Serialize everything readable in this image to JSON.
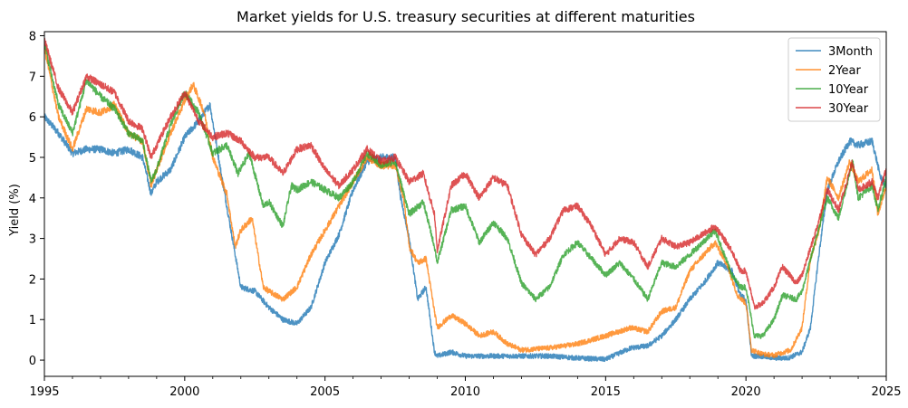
{
  "chart_data": {
    "type": "line",
    "title": "Market yields for U.S. treasury securities at different maturities",
    "xlabel": "",
    "ylabel": "Yield (%)",
    "xlim": [
      1995,
      2025
    ],
    "ylim": [
      -0.4,
      8.1
    ],
    "x_ticks": [
      1995,
      2000,
      2005,
      2010,
      2015,
      2020,
      2025
    ],
    "x_tick_labels": [
      "1995",
      "2000",
      "2005",
      "2010",
      "2015",
      "2020",
      "2025"
    ],
    "y_ticks": [
      0,
      1,
      2,
      3,
      4,
      5,
      6,
      7,
      8
    ],
    "y_tick_labels": [
      "0",
      "1",
      "2",
      "3",
      "4",
      "5",
      "6",
      "7",
      "8"
    ],
    "grid": false,
    "legend": "top-right",
    "series": [
      {
        "name": "3Month",
        "color": "#1f77b4",
        "x": [
          1995.0,
          1995.5,
          1996.0,
          1996.5,
          1997.0,
          1997.5,
          1998.0,
          1998.5,
          1998.8,
          1999.0,
          1999.5,
          2000.0,
          2000.5,
          2000.9,
          2001.3,
          2001.7,
          2002.0,
          2002.5,
          2003.0,
          2003.5,
          2004.0,
          2004.5,
          2005.0,
          2005.5,
          2006.0,
          2006.5,
          2007.0,
          2007.5,
          2007.7,
          2008.0,
          2008.3,
          2008.6,
          2008.9,
          2009.0,
          2009.5,
          2010.0,
          2011.0,
          2012.0,
          2013.0,
          2014.0,
          2015.0,
          2015.9,
          2016.5,
          2017.0,
          2017.5,
          2018.0,
          2018.5,
          2019.0,
          2019.5,
          2019.8,
          2020.0,
          2020.2,
          2020.5,
          2021.0,
          2021.5,
          2022.0,
          2022.3,
          2022.6,
          2022.9,
          2023.3,
          2023.7,
          2024.0,
          2024.5,
          2024.8,
          2025.0
        ],
        "y": [
          6.0,
          5.6,
          5.1,
          5.2,
          5.2,
          5.1,
          5.2,
          5.0,
          4.1,
          4.4,
          4.7,
          5.5,
          5.9,
          6.3,
          4.6,
          3.0,
          1.8,
          1.7,
          1.3,
          1.0,
          0.9,
          1.3,
          2.4,
          3.1,
          4.2,
          4.9,
          5.0,
          5.0,
          4.0,
          3.0,
          1.5,
          1.8,
          0.2,
          0.1,
          0.2,
          0.1,
          0.1,
          0.1,
          0.1,
          0.05,
          0.02,
          0.3,
          0.35,
          0.6,
          1.0,
          1.5,
          1.9,
          2.4,
          2.2,
          1.6,
          1.5,
          0.1,
          0.1,
          0.05,
          0.05,
          0.2,
          0.8,
          2.6,
          4.2,
          4.9,
          5.4,
          5.3,
          5.4,
          4.5,
          4.3
        ]
      },
      {
        "name": "2Year",
        "color": "#ff7f0e",
        "x": [
          1995.0,
          1995.5,
          1996.0,
          1996.5,
          1997.0,
          1997.5,
          1998.0,
          1998.5,
          1998.8,
          1999.0,
          1999.5,
          2000.0,
          2000.3,
          2000.7,
          2001.0,
          2001.5,
          2001.8,
          2002.0,
          2002.4,
          2002.8,
          2003.0,
          2003.5,
          2004.0,
          2004.5,
          2005.0,
          2005.5,
          2006.0,
          2006.5,
          2007.0,
          2007.5,
          2007.8,
          2008.0,
          2008.3,
          2008.6,
          2008.9,
          2009.0,
          2009.5,
          2010.0,
          2010.5,
          2011.0,
          2011.5,
          2012.0,
          2013.0,
          2014.0,
          2015.0,
          2015.9,
          2016.5,
          2017.0,
          2017.5,
          2018.0,
          2018.5,
          2018.9,
          2019.3,
          2019.7,
          2020.0,
          2020.2,
          2020.6,
          2021.0,
          2021.6,
          2022.0,
          2022.3,
          2022.6,
          2022.9,
          2023.3,
          2023.7,
          2024.0,
          2024.5,
          2024.7,
          2025.0
        ],
        "y": [
          7.7,
          6.0,
          5.2,
          6.2,
          6.1,
          6.3,
          5.6,
          5.4,
          4.3,
          4.7,
          5.6,
          6.4,
          6.8,
          6.1,
          5.0,
          4.1,
          2.8,
          3.2,
          3.5,
          1.8,
          1.7,
          1.5,
          1.8,
          2.6,
          3.2,
          3.8,
          4.4,
          5.0,
          4.8,
          4.8,
          4.0,
          2.8,
          2.4,
          2.5,
          1.2,
          0.8,
          1.1,
          0.9,
          0.6,
          0.7,
          0.4,
          0.25,
          0.3,
          0.4,
          0.6,
          0.8,
          0.7,
          1.2,
          1.3,
          2.2,
          2.6,
          2.9,
          2.4,
          1.6,
          1.4,
          0.25,
          0.15,
          0.12,
          0.25,
          0.8,
          2.5,
          3.2,
          4.5,
          4.0,
          4.9,
          4.4,
          4.7,
          3.6,
          4.3
        ]
      },
      {
        "name": "10Year",
        "color": "#2ca02c",
        "x": [
          1995.0,
          1995.5,
          1996.0,
          1996.5,
          1997.0,
          1997.5,
          1998.0,
          1998.5,
          1998.8,
          1999.0,
          1999.5,
          2000.0,
          2000.5,
          2001.0,
          2001.5,
          2001.9,
          2002.3,
          2002.8,
          2003.0,
          2003.5,
          2003.8,
          2004.0,
          2004.5,
          2005.0,
          2005.5,
          2006.0,
          2006.5,
          2007.0,
          2007.5,
          2008.0,
          2008.5,
          2008.9,
          2009.0,
          2009.5,
          2010.0,
          2010.5,
          2011.0,
          2011.5,
          2012.0,
          2012.5,
          2013.0,
          2013.5,
          2014.0,
          2014.5,
          2015.0,
          2015.5,
          2016.0,
          2016.5,
          2017.0,
          2017.5,
          2018.0,
          2018.9,
          2019.5,
          2019.8,
          2020.0,
          2020.3,
          2020.6,
          2021.0,
          2021.3,
          2021.8,
          2022.0,
          2022.5,
          2022.9,
          2023.3,
          2023.8,
          2024.0,
          2024.5,
          2024.7,
          2025.0
        ],
        "y": [
          7.8,
          6.3,
          5.6,
          6.9,
          6.5,
          6.2,
          5.6,
          5.4,
          4.4,
          4.7,
          5.8,
          6.6,
          6.1,
          5.1,
          5.3,
          4.6,
          5.1,
          3.8,
          3.9,
          3.3,
          4.3,
          4.2,
          4.4,
          4.2,
          4.0,
          4.4,
          5.1,
          4.8,
          4.9,
          3.6,
          3.9,
          2.8,
          2.4,
          3.7,
          3.8,
          2.9,
          3.4,
          3.0,
          1.9,
          1.5,
          1.8,
          2.6,
          2.9,
          2.5,
          2.1,
          2.4,
          2.0,
          1.5,
          2.4,
          2.3,
          2.6,
          3.2,
          2.1,
          1.8,
          1.8,
          0.6,
          0.6,
          1.0,
          1.6,
          1.5,
          1.7,
          3.0,
          4.0,
          3.5,
          4.9,
          4.0,
          4.3,
          3.7,
          4.5
        ]
      },
      {
        "name": "30Year",
        "color": "#d62728",
        "x": [
          1995.0,
          1995.5,
          1996.0,
          1996.5,
          1997.0,
          1997.5,
          1998.0,
          1998.5,
          1998.8,
          1999.0,
          1999.5,
          2000.0,
          2000.5,
          2001.0,
          2001.5,
          2002.0,
          2002.5,
          2003.0,
          2003.5,
          2004.0,
          2004.5,
          2005.0,
          2005.5,
          2006.0,
          2006.5,
          2007.0,
          2007.5,
          2008.0,
          2008.5,
          2008.9,
          2009.0,
          2009.5,
          2010.0,
          2010.5,
          2011.0,
          2011.5,
          2012.0,
          2012.5,
          2013.0,
          2013.5,
          2014.0,
          2014.5,
          2015.0,
          2015.5,
          2016.0,
          2016.5,
          2017.0,
          2017.5,
          2018.0,
          2018.9,
          2019.5,
          2019.8,
          2020.0,
          2020.3,
          2020.6,
          2021.0,
          2021.3,
          2021.8,
          2022.0,
          2022.5,
          2022.9,
          2023.3,
          2023.8,
          2024.0,
          2024.5,
          2024.7,
          2025.0
        ],
        "y": [
          7.9,
          6.7,
          6.1,
          7.0,
          6.8,
          6.6,
          5.9,
          5.7,
          5.0,
          5.3,
          6.0,
          6.6,
          5.9,
          5.5,
          5.6,
          5.4,
          5.0,
          5.0,
          4.6,
          5.2,
          5.3,
          4.7,
          4.3,
          4.7,
          5.2,
          4.9,
          5.0,
          4.4,
          4.6,
          3.6,
          2.7,
          4.3,
          4.6,
          4.0,
          4.5,
          4.3,
          3.1,
          2.6,
          3.0,
          3.7,
          3.8,
          3.3,
          2.6,
          3.0,
          2.9,
          2.3,
          3.0,
          2.8,
          2.9,
          3.3,
          2.7,
          2.2,
          2.2,
          1.3,
          1.4,
          1.8,
          2.3,
          1.9,
          2.1,
          3.2,
          4.2,
          3.7,
          4.9,
          4.2,
          4.4,
          4.0,
          4.7
        ]
      }
    ]
  }
}
